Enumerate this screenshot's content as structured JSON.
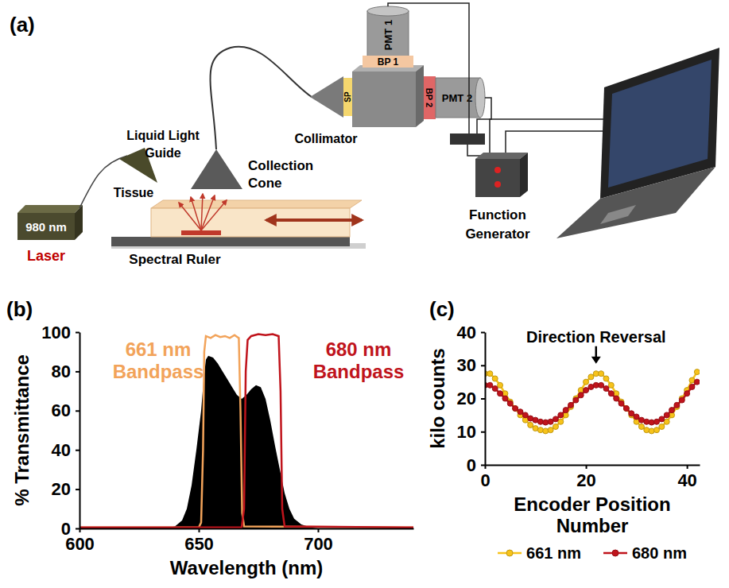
{
  "panel_labels": [
    "(a)",
    "(b)",
    "(c)"
  ],
  "diagram": {
    "laser_wavelength": "980 nm",
    "laser": "Laser",
    "tissue": "Tissue",
    "spectral_ruler": "Spectral Ruler",
    "collection_cone": "Collection Cone",
    "liquid_light_guide": "Liquid Light Guide",
    "collimator": "Collimator",
    "sp": "SP",
    "bp1": "BP 1",
    "bp2": "BP 2",
    "pmt1": "PMT 1",
    "pmt2": "PMT 2",
    "function_generator": "Function Generator"
  },
  "chart_data": [
    {
      "type": "line",
      "x_label": "Wavelength (nm)",
      "y_label": "% Transmittance",
      "xlim": [
        600,
        740
      ],
      "xticks": [
        600,
        650,
        700
      ],
      "ylim": [
        0,
        100
      ],
      "yticks": [
        0,
        20,
        40,
        60,
        80,
        100
      ],
      "series": [
        {
          "type": "area",
          "color": "#000000",
          "x": [
            600,
            635,
            640,
            643,
            645,
            647,
            649,
            651,
            652,
            653,
            654,
            656,
            658,
            660,
            662,
            664,
            666,
            668,
            670,
            672,
            674,
            676,
            678,
            680,
            682,
            684,
            686,
            688,
            690,
            693,
            697,
            700,
            740
          ],
          "values": [
            0,
            0,
            1,
            4,
            10,
            22,
            40,
            60,
            75,
            86,
            88,
            87,
            84,
            80,
            76,
            72,
            68,
            66,
            68,
            71,
            73,
            72,
            66,
            55,
            42,
            30,
            18,
            10,
            5,
            2,
            0.5,
            0,
            0
          ]
        },
        {
          "type": "line",
          "color": "#f2a35a",
          "x": [
            600,
            650,
            651,
            651.8,
            652.3,
            653,
            655,
            657,
            659,
            661,
            663,
            665,
            666.8,
            667.5,
            668.2,
            669,
            740
          ],
          "values": [
            0.5,
            0.5,
            3,
            40,
            90,
            98,
            97,
            98.5,
            97.5,
            98,
            97,
            98.5,
            97,
            60,
            8,
            1,
            0.5
          ]
        },
        {
          "type": "line",
          "color": "#c0141c",
          "x": [
            600,
            668,
            669,
            669.7,
            670.5,
            672,
            675,
            678,
            681,
            683.5,
            684.3,
            685,
            686,
            740
          ],
          "values": [
            0.5,
            0.5,
            10,
            80,
            96,
            98,
            99,
            98.5,
            99,
            98,
            70,
            10,
            1,
            0.5
          ]
        }
      ],
      "annotations": [
        {
          "text": "661 nm Bandpass",
          "x": 633,
          "y": 88,
          "color": "#f2a35a"
        },
        {
          "text": "680 nm Bandpass",
          "x": 717,
          "y": 88,
          "color": "#c0141c"
        }
      ]
    },
    {
      "type": "line",
      "x_label": "Encoder Position Number",
      "y_label": "kilo counts",
      "xlim": [
        0,
        42.5
      ],
      "xticks": [
        0,
        20,
        40
      ],
      "ylim": [
        0,
        40
      ],
      "yticks": [
        0,
        10,
        20,
        30,
        40
      ],
      "x": [
        0,
        1,
        2,
        3,
        4,
        5,
        6,
        7,
        8,
        9,
        10,
        11,
        12,
        13,
        14,
        15,
        16,
        17,
        18,
        19,
        20,
        21,
        22,
        23,
        24,
        25,
        26,
        27,
        28,
        29,
        30,
        31,
        32,
        33,
        34,
        35,
        36,
        37,
        38,
        39,
        40,
        41,
        42
      ],
      "series": [
        {
          "name": "661 nm",
          "color": "#f7c31a",
          "marker": "circle",
          "values": [
            27.5,
            27.5,
            26,
            24,
            21.5,
            19,
            17,
            15,
            13.5,
            12,
            11,
            10.5,
            10.2,
            10.5,
            11.5,
            13,
            15,
            17.5,
            20,
            22.5,
            25,
            26.5,
            27.5,
            27.5,
            26,
            24,
            21.5,
            19,
            17,
            15,
            13,
            11.5,
            10.5,
            10.2,
            10.5,
            11.5,
            13,
            15,
            17.5,
            20,
            22.5,
            25.5,
            28
          ]
        },
        {
          "name": "680 nm",
          "color": "#c0141c",
          "marker": "circle",
          "values": [
            24,
            24,
            23,
            21.5,
            20,
            18.5,
            17,
            16,
            15,
            14,
            13.5,
            13,
            12.8,
            13,
            13.8,
            15,
            16.5,
            18,
            19.5,
            21,
            22.5,
            23.5,
            24,
            24,
            23,
            21.5,
            20,
            18.5,
            17,
            15.5,
            14.5,
            13.5,
            13,
            12.8,
            13,
            13.8,
            15,
            16.5,
            18,
            19.5,
            21.5,
            23.5,
            25
          ]
        }
      ],
      "legend": "bottom",
      "annotations": [
        {
          "text": "Direction Reversal",
          "x": 22,
          "y": 30
        }
      ]
    }
  ]
}
